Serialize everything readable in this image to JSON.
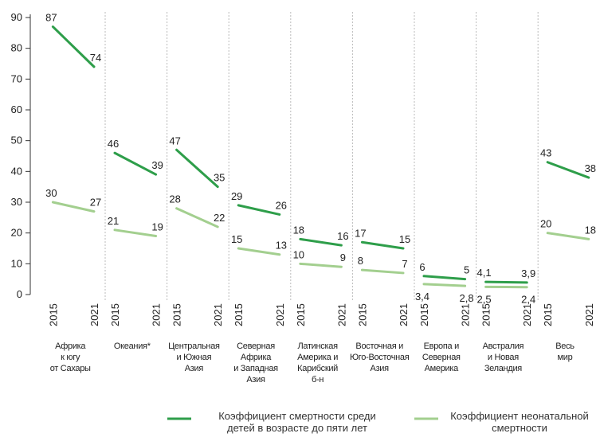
{
  "chart_data": {
    "type": "line",
    "categories": [
      "Африка\nк югу\nот Сахары",
      "Океания*",
      "Центральная\nи Южная\nАзия",
      "Северная\nАфрика\nи Западная\nАзия",
      "Латинская\nАмерика и\nКарибский\nб-н",
      "Восточная и\nЮго-Восточная\nАзия",
      "Европа и\nСеверная\nАмерика",
      "Австралия\nи Новая\nЗеландия",
      "Весь\nмир"
    ],
    "x": [
      2015,
      2021
    ],
    "ylim": [
      0,
      90
    ],
    "yticks": [
      0,
      10,
      20,
      30,
      40,
      50,
      60,
      70,
      80,
      90
    ],
    "grid": false,
    "series": [
      {
        "name": "Коэффициент смертности среди\nдетей в возрасте до пяти лет",
        "color": "#2e9e4a",
        "values": [
          [
            87,
            74
          ],
          [
            46,
            39
          ],
          [
            47,
            35
          ],
          [
            29,
            26
          ],
          [
            18,
            16
          ],
          [
            17,
            15
          ],
          [
            6,
            5
          ],
          [
            4.1,
            3.9
          ],
          [
            43,
            38
          ]
        ],
        "value_labels": [
          [
            "87",
            "74"
          ],
          [
            "46",
            "39"
          ],
          [
            "47",
            "35"
          ],
          [
            "29",
            "26"
          ],
          [
            "18",
            "16"
          ],
          [
            "17",
            "15"
          ],
          [
            "6",
            "5"
          ],
          [
            "4,1",
            "3,9"
          ],
          [
            "43",
            "38"
          ]
        ]
      },
      {
        "name": "Коэффициент неонатальной\nсмертности",
        "color": "#a3cf8f",
        "values": [
          [
            30,
            27
          ],
          [
            21,
            19
          ],
          [
            28,
            22
          ],
          [
            15,
            13
          ],
          [
            10,
            9
          ],
          [
            8,
            7
          ],
          [
            3.4,
            2.8
          ],
          [
            2.5,
            2.4
          ],
          [
            20,
            18
          ]
        ],
        "value_labels": [
          [
            "30",
            "27"
          ],
          [
            "21",
            "19"
          ],
          [
            "28",
            "22"
          ],
          [
            "15",
            "13"
          ],
          [
            "10",
            "9"
          ],
          [
            "8",
            "7"
          ],
          [
            "3,4",
            "2,8"
          ],
          [
            "2,5",
            "2,4"
          ],
          [
            "20",
            "18"
          ]
        ]
      }
    ]
  }
}
